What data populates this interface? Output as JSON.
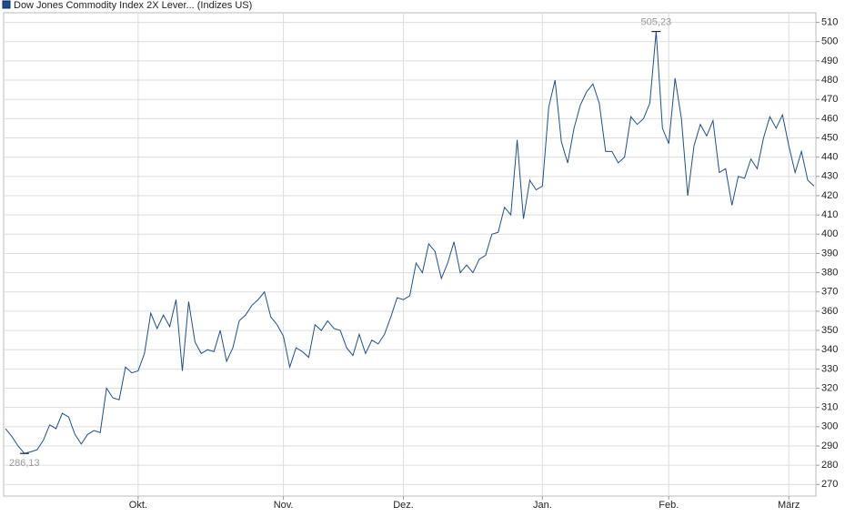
{
  "chart_data": {
    "type": "line",
    "series": [
      {
        "name": "Dow Jones Commodity Index 2X Lever... (Indizes US)",
        "color": "#1f4e8f",
        "values": [
          299,
          295,
          290,
          286.13,
          287,
          288,
          293,
          301,
          299,
          307,
          305,
          296,
          291,
          296,
          298,
          297,
          320,
          315,
          314,
          331,
          328,
          329,
          338,
          359,
          351,
          358,
          352,
          366,
          329,
          365,
          344,
          338,
          340,
          339,
          350,
          334,
          341,
          355,
          358,
          363,
          366,
          370,
          357,
          353,
          347,
          331,
          341,
          339,
          336,
          353,
          350,
          355,
          351,
          350,
          341,
          337,
          348,
          338,
          345,
          343,
          348,
          357,
          367,
          366,
          368,
          385,
          380,
          395,
          391,
          377,
          385,
          396,
          380,
          384,
          380,
          387,
          389,
          400,
          401,
          414,
          410,
          449,
          408,
          428,
          423,
          425,
          466,
          480,
          448,
          437,
          455,
          467,
          474,
          478,
          468,
          443,
          443,
          437,
          440,
          461,
          457,
          460,
          468,
          505.23,
          455,
          447,
          481,
          460,
          420,
          446,
          457,
          451,
          459,
          432,
          434,
          415,
          430,
          429,
          439,
          434,
          450,
          461,
          455,
          462,
          446,
          432,
          443,
          428,
          425
        ],
        "value_labels": [
          null,
          null,
          null,
          "286,13",
          null,
          null,
          null,
          null,
          null,
          null,
          null,
          null,
          null,
          null,
          null,
          null,
          null,
          null,
          null,
          null,
          null,
          null,
          null,
          null,
          null,
          null,
          null,
          null,
          null,
          null,
          null,
          null,
          null,
          null,
          null,
          null,
          null,
          null,
          null,
          null,
          null,
          null,
          null,
          null,
          null,
          null,
          null,
          null,
          null,
          null,
          null,
          null,
          null,
          null,
          null,
          null,
          null,
          null,
          null,
          null,
          null,
          null,
          null,
          null,
          null,
          null,
          null,
          null,
          null,
          null,
          null,
          null,
          null,
          null,
          null,
          null,
          null,
          null,
          null,
          null,
          null,
          null,
          null,
          null,
          null,
          null,
          null,
          null,
          null,
          null,
          null,
          null,
          null,
          null,
          null,
          null,
          null,
          null,
          null,
          null,
          null,
          null,
          null,
          "505,23",
          null,
          null,
          null,
          null,
          null,
          null,
          null,
          null,
          null,
          null,
          null,
          null,
          null,
          null,
          null,
          null,
          null,
          null,
          null,
          null,
          null,
          null,
          null,
          null,
          null
        ]
      }
    ],
    "categories": [
      null,
      null,
      null,
      null,
      null,
      null,
      null,
      null,
      null,
      null,
      null,
      null,
      null,
      null,
      null,
      null,
      null,
      null,
      null,
      null,
      null,
      "Okt.",
      null,
      null,
      null,
      null,
      null,
      null,
      null,
      null,
      null,
      null,
      null,
      null,
      null,
      null,
      null,
      null,
      null,
      null,
      null,
      null,
      null,
      null,
      "Nov.",
      null,
      null,
      null,
      null,
      null,
      null,
      null,
      null,
      null,
      null,
      null,
      null,
      null,
      null,
      null,
      null,
      null,
      null,
      "Dez.",
      null,
      null,
      null,
      null,
      null,
      null,
      null,
      null,
      null,
      null,
      null,
      null,
      null,
      null,
      null,
      null,
      null,
      null,
      null,
      null,
      null,
      "Jan.",
      null,
      null,
      null,
      null,
      null,
      null,
      null,
      null,
      null,
      null,
      null,
      null,
      null,
      null,
      null,
      null,
      null,
      null,
      null,
      "Feb.",
      null,
      null,
      null,
      null,
      null,
      null,
      null,
      null,
      null,
      null,
      null,
      null,
      null,
      null,
      null,
      null,
      null,
      null,
      "März",
      null,
      null,
      null,
      null
    ],
    "ylim": [
      264,
      515
    ],
    "yticks": [
      270,
      280,
      290,
      300,
      310,
      320,
      330,
      340,
      350,
      360,
      370,
      380,
      390,
      400,
      410,
      420,
      430,
      440,
      450,
      460,
      470,
      480,
      490,
      500,
      510
    ],
    "grid": true
  }
}
